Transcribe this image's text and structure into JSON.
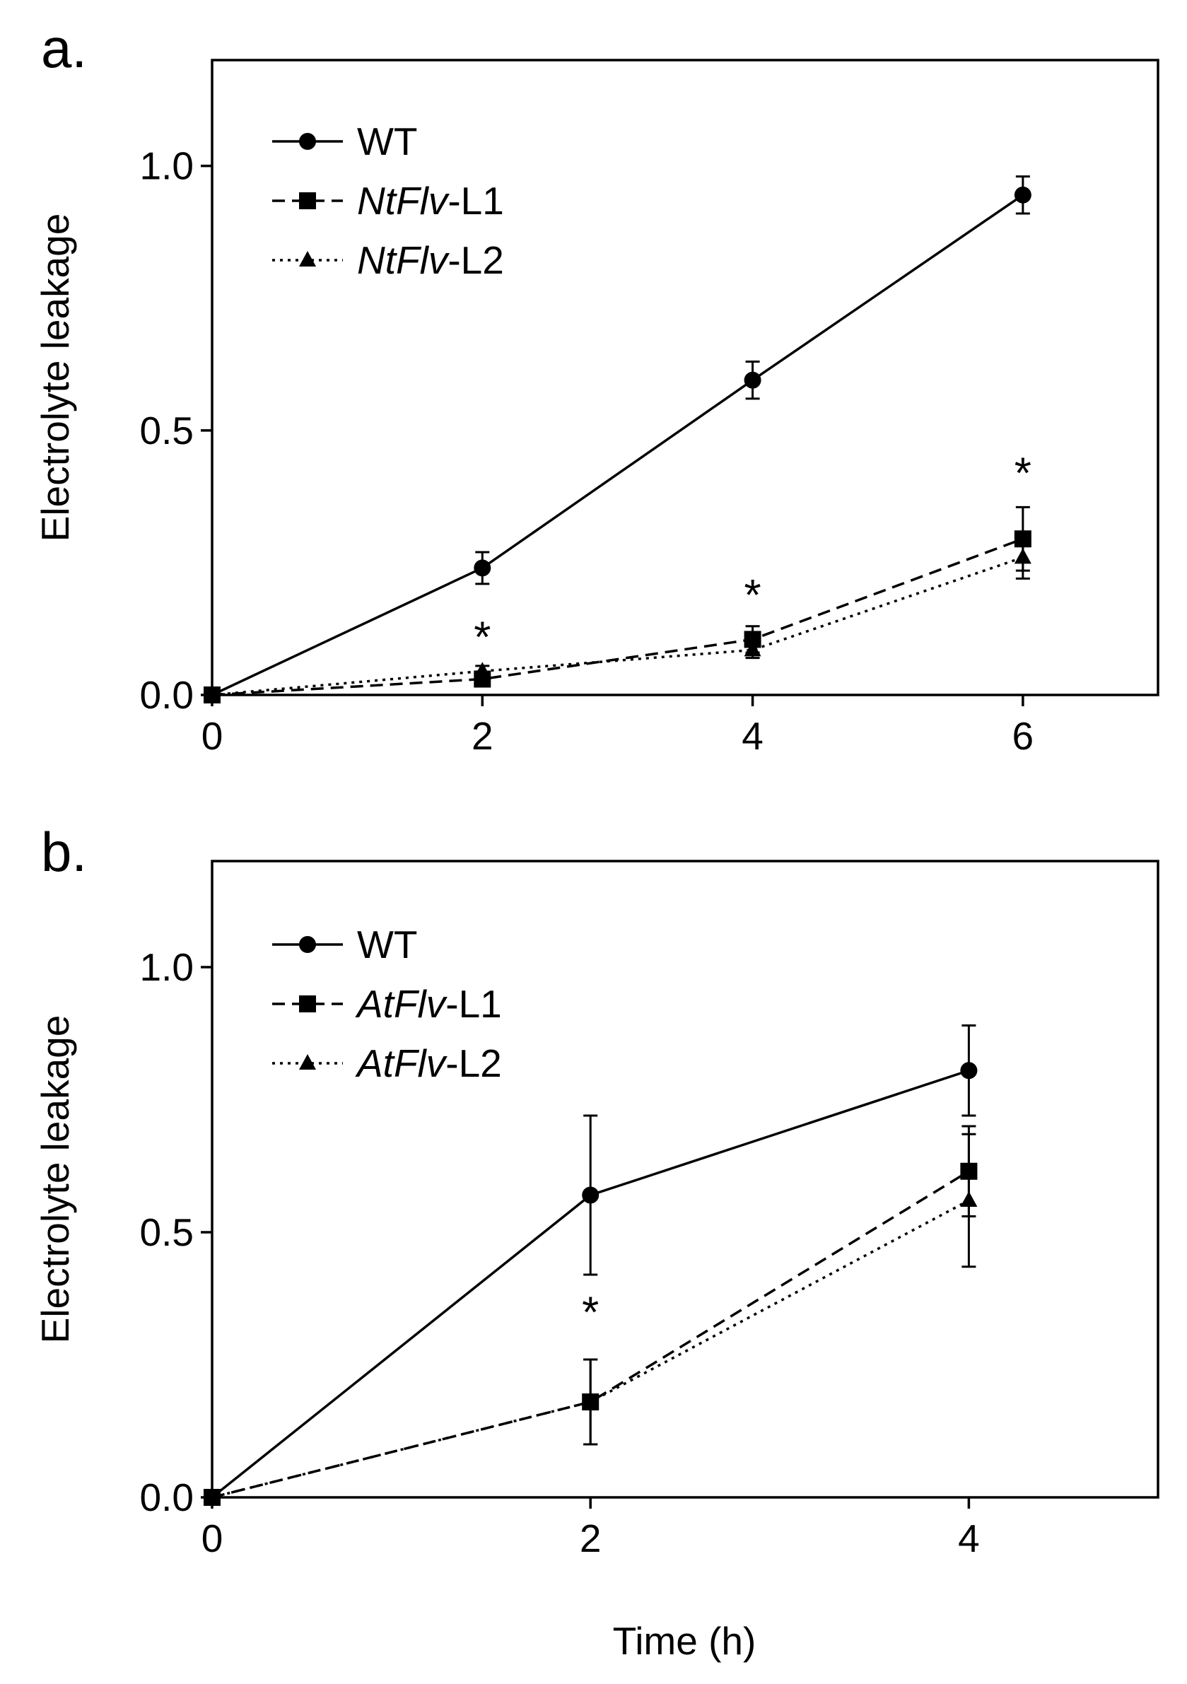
{
  "figure": {
    "xlabel": "Time (h)"
  },
  "chart_data": [
    {
      "panel": "a.",
      "type": "line",
      "ylabel": "Electrolyte leakage",
      "xlim": [
        0,
        7
      ],
      "ylim": [
        0,
        1.2
      ],
      "x_ticks": [
        "0",
        "2",
        "4",
        "6"
      ],
      "y_ticks": [
        "0.0",
        "0.5",
        "1.0"
      ],
      "x": [
        0,
        2,
        4,
        6
      ],
      "series": [
        {
          "name": "WT",
          "name_italic": "",
          "name_plain": "WT",
          "style": "solid",
          "marker": "circle",
          "values": [
            0.0,
            0.24,
            0.595,
            0.945
          ],
          "errors": [
            0,
            0.03,
            0.035,
            0.035
          ]
        },
        {
          "name": "NtFlv-L1",
          "name_italic": "NtFlv",
          "name_plain": "-L1",
          "style": "dashed",
          "marker": "square",
          "values": [
            0.0,
            0.03,
            0.105,
            0.295
          ],
          "errors": [
            0,
            0.01,
            0.025,
            0.06
          ]
        },
        {
          "name": "NtFlv-L2",
          "name_italic": "NtFlv",
          "name_plain": "-L2",
          "style": "dotted",
          "marker": "triangle",
          "values": [
            0.0,
            0.045,
            0.085,
            0.26
          ],
          "errors": [
            0,
            0.01,
            0.015,
            0.04
          ]
        }
      ],
      "annotations": [
        {
          "text": "*",
          "x": 2,
          "y": 0.11
        },
        {
          "text": "*",
          "x": 4,
          "y": 0.19
        },
        {
          "text": "*",
          "x": 6,
          "y": 0.42
        }
      ]
    },
    {
      "panel": "b.",
      "type": "line",
      "ylabel": "Electrolyte leakage",
      "xlim": [
        0,
        5
      ],
      "ylim": [
        0,
        1.2
      ],
      "x_ticks": [
        "0",
        "2",
        "4"
      ],
      "y_ticks": [
        "0.0",
        "0.5",
        "1.0"
      ],
      "x": [
        0,
        2,
        4
      ],
      "series": [
        {
          "name": "WT",
          "name_italic": "",
          "name_plain": "WT",
          "style": "solid",
          "marker": "circle",
          "values": [
            0.0,
            0.57,
            0.805
          ],
          "errors": [
            0,
            0.15,
            0.085
          ]
        },
        {
          "name": "AtFlv-L1",
          "name_italic": "AtFlv",
          "name_plain": "-L1",
          "style": "dashed",
          "marker": "square",
          "values": [
            0.0,
            0.18,
            0.615
          ],
          "errors": [
            0,
            0.08,
            0.085
          ]
        },
        {
          "name": "AtFlv-L2",
          "name_italic": "AtFlv",
          "name_plain": "-L2",
          "style": "dotted",
          "marker": "triangle",
          "values": [
            0.0,
            0.18,
            0.56
          ],
          "errors": [
            0,
            0.08,
            0.125
          ]
        }
      ],
      "annotations": [
        {
          "text": "*",
          "x": 2,
          "y": 0.35
        }
      ]
    }
  ]
}
